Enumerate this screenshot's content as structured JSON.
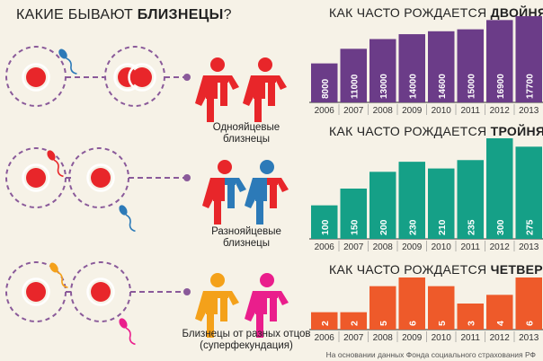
{
  "header": {
    "title_prefix": "КАКИЕ БЫВАЮТ ",
    "title_bold": "БЛИЗНЕЦЫ",
    "title_suffix": "?"
  },
  "types": [
    {
      "caption": "Однояйцевые\nблизнецы"
    },
    {
      "caption": "Разнояйцевые\nблизнецы"
    },
    {
      "caption": "Близнецы от разных отцов\n(суперфекундация)"
    }
  ],
  "colors": {
    "red": "#e8262a",
    "blue": "#2c7ab8",
    "orange": "#f4a11a",
    "pink": "#ea1e8c",
    "purple_dash": "#8a5a9a",
    "chart1": "#6b3c88",
    "chart2": "#15a087",
    "chart3": "#ee5a2a"
  },
  "chart_data": [
    {
      "type": "bar",
      "title_prefix": "КАК ЧАСТО РОЖДАЕТСЯ ",
      "title_bold": "ДВОЙНЯ",
      "categories": [
        "2006",
        "2007",
        "2008",
        "2009",
        "2010",
        "2011",
        "2012",
        "2013"
      ],
      "values": [
        8000,
        11000,
        13000,
        14000,
        14600,
        15000,
        16900,
        17700
      ],
      "value_labels": [
        "8000",
        "11000",
        "13000",
        "14000",
        "14600",
        "15000",
        "16900",
        "17700"
      ],
      "ylim": [
        0,
        17700
      ],
      "color": "#6b3c88"
    },
    {
      "type": "bar",
      "title_prefix": "КАК ЧАСТО РОЖДАЕТСЯ ",
      "title_bold": "ТРОЙНЯ",
      "categories": [
        "2006",
        "2007",
        "2008",
        "2009",
        "2010",
        "2011",
        "2012",
        "2013"
      ],
      "values": [
        100,
        150,
        200,
        230,
        210,
        235,
        300,
        275
      ],
      "value_labels": [
        "100",
        "150",
        "200",
        "230",
        "210",
        "235",
        "300",
        "275"
      ],
      "ylim": [
        0,
        300
      ],
      "color": "#15a087"
    },
    {
      "type": "bar",
      "title_prefix": "КАК ЧАСТО РОЖДАЕТСЯ ",
      "title_bold": "ЧЕТВЕРНЯ",
      "categories": [
        "2006",
        "2007",
        "2008",
        "2009",
        "2010",
        "2011",
        "2012",
        "2013"
      ],
      "values": [
        2,
        2,
        5,
        6,
        5,
        3,
        4,
        6
      ],
      "value_labels": [
        "2",
        "2",
        "5",
        "6",
        "5",
        "3",
        "4",
        "6"
      ],
      "ylim": [
        0,
        6
      ],
      "color": "#ee5a2a"
    }
  ],
  "footer": {
    "source": "На основании данных Фонда социального страхования РФ"
  }
}
